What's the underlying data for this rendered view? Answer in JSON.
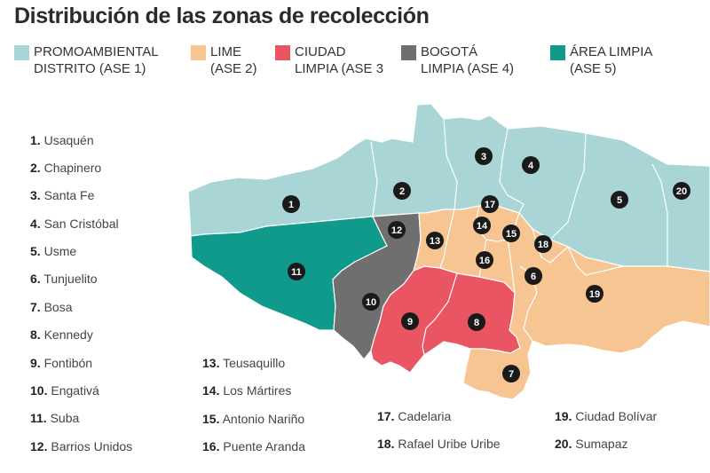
{
  "title": "Distribución de las zonas de recolección",
  "colors": {
    "ase1": "#a9d5d6",
    "ase2": "#f6c592",
    "ase3": "#e95562",
    "ase4": "#6f6f6f",
    "ase5": "#109a8c",
    "border": "#ffffff",
    "marker": "#1a1a1a"
  },
  "legend": [
    {
      "line1": "PROMOAMBIENTAL",
      "line2": "DISTRITO (ASE 1)",
      "color": "#a9d5d6"
    },
    {
      "line1": "LIME",
      "line2": "(ASE 2)",
      "color": "#f6c592"
    },
    {
      "line1": "CIUDAD",
      "line2": "LIMPIA (ASE 3",
      "color": "#e95562"
    },
    {
      "line1": "BOGOTÁ",
      "line2": "LIMPIA (ASE 4)",
      "color": "#6f6f6f"
    },
    {
      "line1": "ÁREA LIMPIA",
      "line2": "(ASE 5)",
      "color": "#109a8c"
    }
  ],
  "localities": [
    {
      "num": "1.",
      "name": "Usaquén"
    },
    {
      "num": "2.",
      "name": "Chapinero"
    },
    {
      "num": "3.",
      "name": "Santa Fe"
    },
    {
      "num": "4.",
      "name": "San Cristóbal"
    },
    {
      "num": "5.",
      "name": "Usme"
    },
    {
      "num": "6.",
      "name": "Tunjuelito"
    },
    {
      "num": "7.",
      "name": "Bosa"
    },
    {
      "num": "8.",
      "name": "Kennedy"
    },
    {
      "num": "9.",
      "name": "Fontibón"
    },
    {
      "num": "10.",
      "name": "Engativá"
    },
    {
      "num": "11.",
      "name": "Suba"
    },
    {
      "num": "12.",
      "name": "Barrios Unidos"
    },
    {
      "num": "13.",
      "name": "Teusaquillo"
    },
    {
      "num": "14.",
      "name": "Los Mártires"
    },
    {
      "num": "15.",
      "name": "Antonio Nariño"
    },
    {
      "num": "16.",
      "name": "Puente Aranda"
    },
    {
      "num": "17.",
      "name": "Cadelaria"
    },
    {
      "num": "18.",
      "name": "Rafael Uribe Uribe"
    },
    {
      "num": "19.",
      "name": "Ciudad Bolívar"
    },
    {
      "num": "20.",
      "name": "Sumapaz"
    }
  ],
  "markers": [
    "1",
    "2",
    "3",
    "4",
    "5",
    "6",
    "7",
    "8",
    "9",
    "10",
    "11",
    "12",
    "13",
    "14",
    "15",
    "16",
    "17",
    "18",
    "19",
    "20"
  ]
}
